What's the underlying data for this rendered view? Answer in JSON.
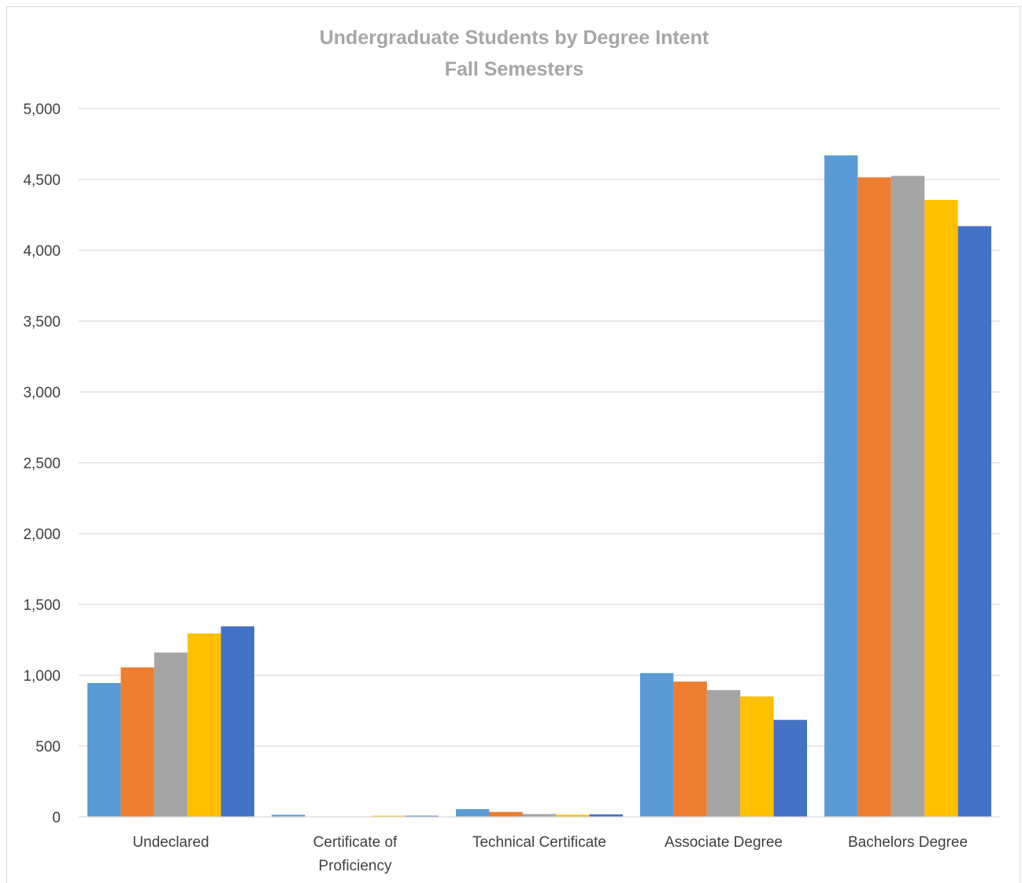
{
  "chart_data": {
    "type": "bar",
    "title": "Undergraduate Students by Degree Intent",
    "subtitle": "Fall Semesters",
    "categories": [
      [
        "Undeclared"
      ],
      [
        "Certificate of",
        "Proficiency"
      ],
      [
        "Technical Certificate"
      ],
      [
        "Associate Degree"
      ],
      [
        "Bachelors Degree"
      ]
    ],
    "series": [
      {
        "color": "#5b9bd5",
        "values": [
          945,
          15,
          55,
          1015,
          4670
        ]
      },
      {
        "color": "#ed7d31",
        "values": [
          1055,
          3,
          35,
          955,
          4515
        ]
      },
      {
        "color": "#a5a5a5",
        "values": [
          1160,
          3,
          20,
          895,
          4525
        ]
      },
      {
        "color": "#ffc000",
        "values": [
          1295,
          8,
          15,
          850,
          4355
        ]
      },
      {
        "color": "#4472c4",
        "values": [
          1345,
          8,
          18,
          685,
          4170
        ]
      }
    ],
    "ylim": [
      0,
      5000
    ],
    "yticks": [
      0,
      500,
      1000,
      1500,
      2000,
      2500,
      3000,
      3500,
      4000,
      4500,
      5000
    ],
    "ytick_labels": [
      "0",
      "500",
      "1,000",
      "1,500",
      "2,000",
      "2,500",
      "3,000",
      "3,500",
      "4,000",
      "4,500",
      "5,000"
    ],
    "xlabel": "",
    "ylabel": "",
    "grid": true,
    "legend": "none"
  }
}
